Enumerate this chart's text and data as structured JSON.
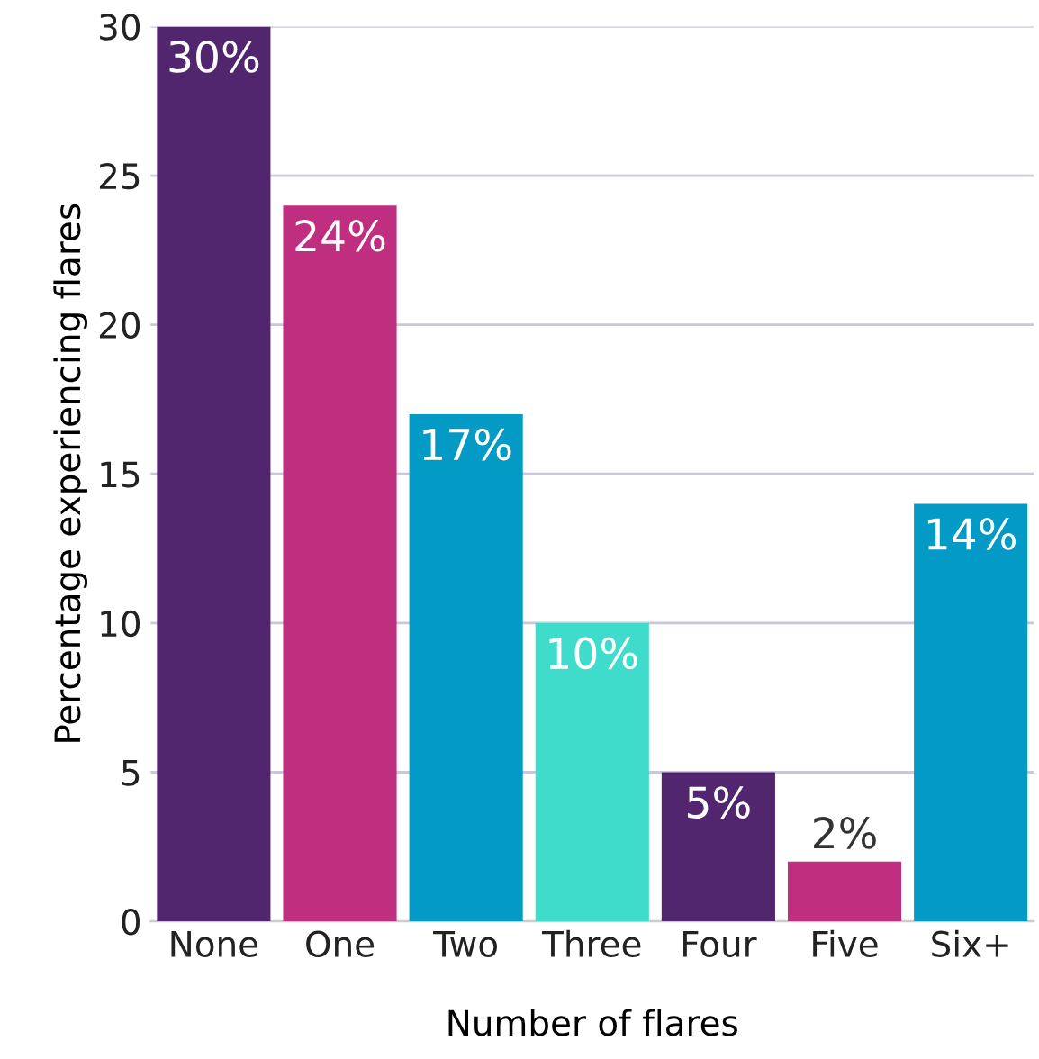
{
  "chart_data": {
    "type": "bar",
    "xlabel": "Number of flares",
    "ylabel": "Percentage experiencing flares",
    "categories": [
      "None",
      "One",
      "Two",
      "Three",
      "Four",
      "Five",
      "Six+"
    ],
    "values": [
      30,
      24,
      17,
      10,
      5,
      2,
      14
    ],
    "colors": [
      "#52266e",
      "#c02e80",
      "#039ac6",
      "#40dccb",
      "#52266e",
      "#c02e80",
      "#039ac6"
    ],
    "value_labels": [
      "30%",
      "24%",
      "17%",
      "10%",
      "5%",
      "2%",
      "14%"
    ],
    "ylim": [
      0,
      30
    ],
    "yticks": [
      0,
      5,
      10,
      15,
      20,
      25,
      30
    ],
    "grid": "y"
  }
}
